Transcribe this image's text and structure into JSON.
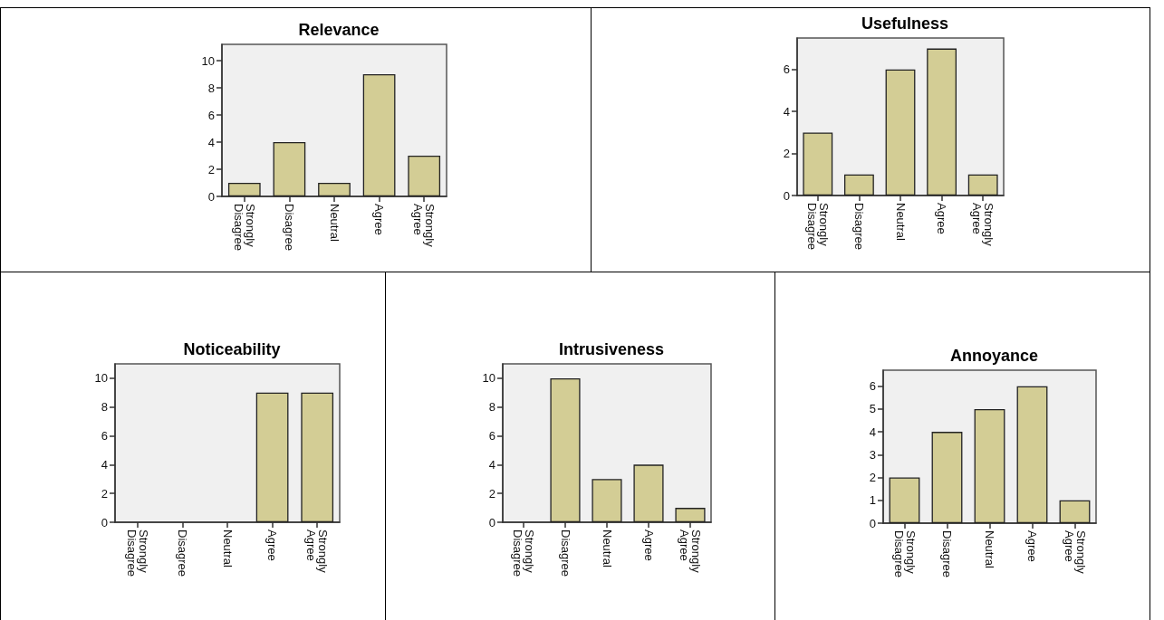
{
  "chart_data": [
    {
      "type": "bar",
      "title": "Relevance",
      "categories": [
        "Strongly Disagree",
        "Disagree",
        "Neutral",
        "Agree",
        "Strongly Agree"
      ],
      "values": [
        1,
        4,
        1,
        9,
        3
      ],
      "color": "#d3cd95",
      "ylim": [
        0,
        11.2
      ],
      "yticks": [
        0,
        2,
        4,
        6,
        8,
        10
      ],
      "grid": false
    },
    {
      "type": "bar",
      "title": "Usefulness",
      "categories": [
        "Strongly Disagree",
        "Disagree",
        "Neutral",
        "Agree",
        "Strongly Agree"
      ],
      "values": [
        3,
        1,
        6,
        7,
        1
      ],
      "color": "#d3cd95",
      "ylim": [
        0,
        7.5
      ],
      "yticks": [
        0,
        2,
        4,
        6
      ],
      "grid": false
    },
    {
      "type": "bar",
      "title": "Noticeability",
      "categories": [
        "Strongly Disagree",
        "Disagree",
        "Neutral",
        "Agree",
        "Strongly Agree"
      ],
      "values": [
        0,
        0,
        0,
        9,
        9
      ],
      "color": "#d3cd95",
      "ylim": [
        0,
        11
      ],
      "yticks": [
        0,
        2,
        4,
        6,
        8,
        10
      ],
      "grid": false
    },
    {
      "type": "bar",
      "title": "Intrusiveness",
      "categories": [
        "Strongly Disagree",
        "Disagree",
        "Neutral",
        "Agree",
        "Strongly Agree"
      ],
      "values": [
        0,
        10,
        3,
        4,
        1
      ],
      "color": "#d3cd95",
      "ylim": [
        0,
        11
      ],
      "yticks": [
        0,
        2,
        4,
        6,
        8,
        10
      ],
      "grid": false
    },
    {
      "type": "bar",
      "title": "Annoyance",
      "categories": [
        "Strongly Disagree",
        "Disagree",
        "Neutral",
        "Agree",
        "Strongly Agree"
      ],
      "values": [
        2,
        4,
        5,
        6,
        1
      ],
      "color": "#d3cd95",
      "ylim": [
        0,
        6.7
      ],
      "yticks": [
        0,
        1,
        2,
        3,
        4,
        5,
        6
      ],
      "grid": false
    }
  ]
}
